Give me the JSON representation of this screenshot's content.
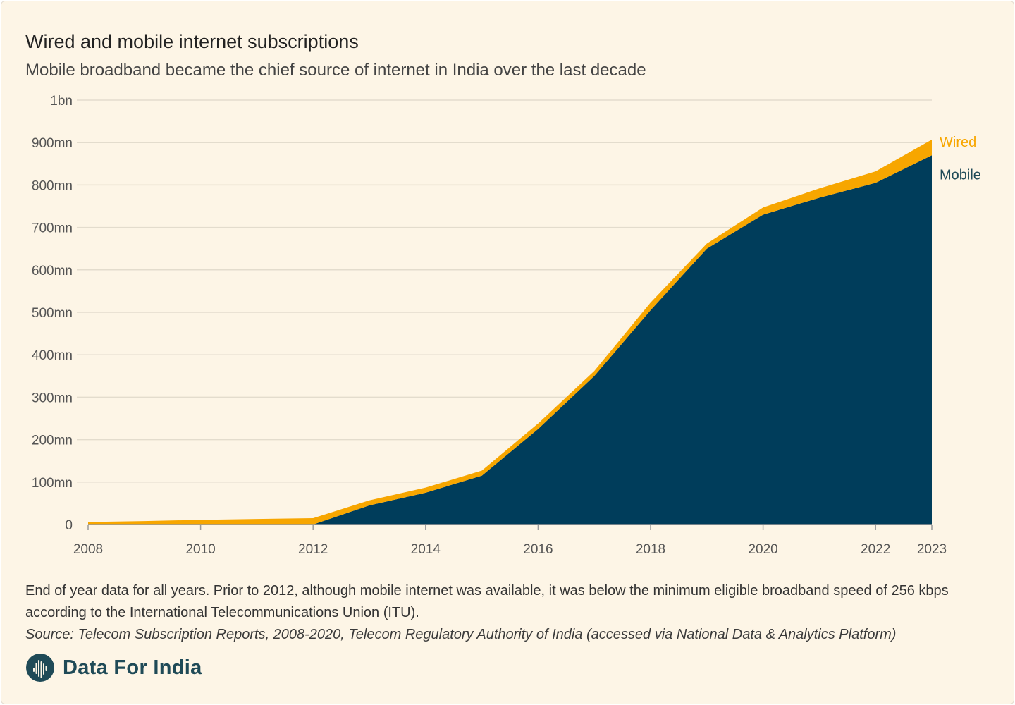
{
  "header": {
    "title": "Wired and mobile internet subscriptions",
    "subtitle": "Mobile broadband became the chief source of internet in India over the last decade"
  },
  "chart_data": {
    "type": "area",
    "stacked": true,
    "x": [
      2008,
      2009,
      2010,
      2011,
      2012,
      2013,
      2014,
      2015,
      2016,
      2017,
      2018,
      2019,
      2020,
      2021,
      2022,
      2023
    ],
    "series": [
      {
        "name": "Mobile",
        "color": "#003d5b",
        "values": [
          0,
          0,
          0,
          0,
          0,
          45,
          75,
          115,
          225,
          350,
          505,
          650,
          730,
          770,
          805,
          870
        ]
      },
      {
        "name": "Wired",
        "color": "#f7a600",
        "values": [
          6,
          8,
          11,
          13,
          15,
          12,
          12,
          12,
          13,
          12,
          18,
          12,
          17,
          22,
          27,
          37
        ]
      }
    ],
    "units": "subscriptions (millions)",
    "ylim": [
      0,
      1000
    ],
    "yticks": [
      {
        "value": 0,
        "label": "0"
      },
      {
        "value": 100,
        "label": "100mn"
      },
      {
        "value": 200,
        "label": "200mn"
      },
      {
        "value": 300,
        "label": "300mn"
      },
      {
        "value": 400,
        "label": "400mn"
      },
      {
        "value": 500,
        "label": "500mn"
      },
      {
        "value": 600,
        "label": "600mn"
      },
      {
        "value": 700,
        "label": "700mn"
      },
      {
        "value": 800,
        "label": "800mn"
      },
      {
        "value": 900,
        "label": "900mn"
      },
      {
        "value": 1000,
        "label": "1bn"
      }
    ],
    "xticks": [
      {
        "value": 2008,
        "label": "2008"
      },
      {
        "value": 2010,
        "label": "2010"
      },
      {
        "value": 2012,
        "label": "2012"
      },
      {
        "value": 2014,
        "label": "2014"
      },
      {
        "value": 2016,
        "label": "2016"
      },
      {
        "value": 2018,
        "label": "2018"
      },
      {
        "value": 2020,
        "label": "2020"
      },
      {
        "value": 2022,
        "label": "2022"
      },
      {
        "value": 2023,
        "label": "2023"
      }
    ],
    "series_labels": [
      {
        "name": "Wired",
        "text": "Wired",
        "color": "#f7a600"
      },
      {
        "name": "Mobile",
        "text": "Mobile",
        "color": "#1f4a57"
      }
    ],
    "grid": true,
    "legend": "direct labels at right end"
  },
  "footer": {
    "note": "End of year data for all years. Prior to 2012, although mobile internet was available, it was below the minimum eligible broadband speed of 256 kbps according to the International Telecommunications Union (ITU).",
    "source": "Source: Telecom Subscription Reports, 2008-2020, Telecom Regulatory Authority of India (accessed via National Data & Analytics Platform)",
    "brand": "Data For India",
    "brand_icon": "india-map-logo-icon"
  },
  "colors": {
    "background": "#fdf5e6",
    "mobile": "#003d5b",
    "wired": "#f7a600",
    "brand": "#1f4a57"
  }
}
